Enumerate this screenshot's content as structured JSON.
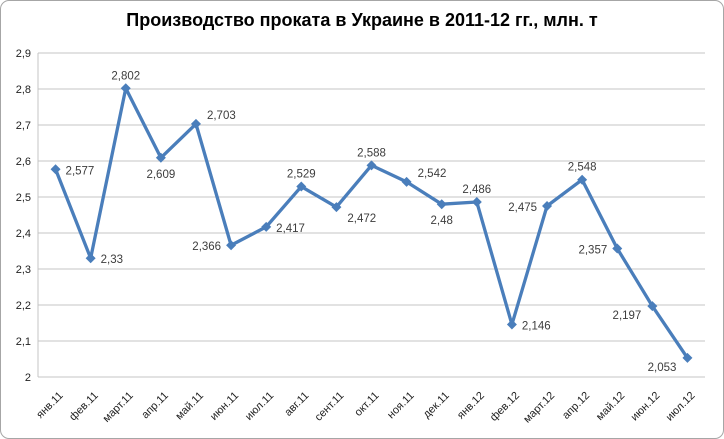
{
  "chart_data": {
    "type": "line",
    "title": "Производство проката в Украине в 2011-12 гг., млн. т",
    "categories": [
      "янв.11",
      "фев.11",
      "март.11",
      "апр.11",
      "май.11",
      "июн.11",
      "июл.11",
      "авг.11",
      "сент.11",
      "окт.11",
      "ноя.11",
      "дек.11",
      "янв.12",
      "фев.12",
      "март.12",
      "апр.12",
      "май.12",
      "июн.12",
      "июл.12"
    ],
    "values": [
      2.577,
      2.33,
      2.802,
      2.609,
      2.703,
      2.366,
      2.417,
      2.529,
      2.472,
      2.588,
      2.542,
      2.48,
      2.486,
      2.146,
      2.475,
      2.548,
      2.357,
      2.197,
      2.053
    ],
    "value_labels": [
      "2,577",
      "2,33",
      "2,802",
      "2,609",
      "2,703",
      "2,366",
      "2,417",
      "2,529",
      "2,472",
      "2,588",
      "2,542",
      "2,48",
      "2,486",
      "2,146",
      "2,475",
      "2,548",
      "2,357",
      "2,197",
      "2,053"
    ],
    "label_positions": [
      "right",
      "right",
      "above",
      "below",
      "above-right",
      "left",
      "right",
      "above",
      "below-right",
      "above",
      "above-right",
      "below",
      "above",
      "right",
      "left",
      "above",
      "left",
      "below-left",
      "below-left"
    ],
    "ylim": [
      2.0,
      2.9
    ],
    "ytick_labels": [
      "2",
      "2,1",
      "2,2",
      "2,3",
      "2,4",
      "2,5",
      "2,6",
      "2,7",
      "2,8",
      "2,9"
    ],
    "xlabel": "",
    "ylabel": "",
    "grid": true,
    "legend": "none",
    "decimal_separator": ",",
    "marker": "diamond",
    "line_color": "#4a7ebb",
    "grid_color": "#c4c4c4",
    "axis_line_color": "#c4c4c4",
    "border_color": "#a6a6a6"
  }
}
